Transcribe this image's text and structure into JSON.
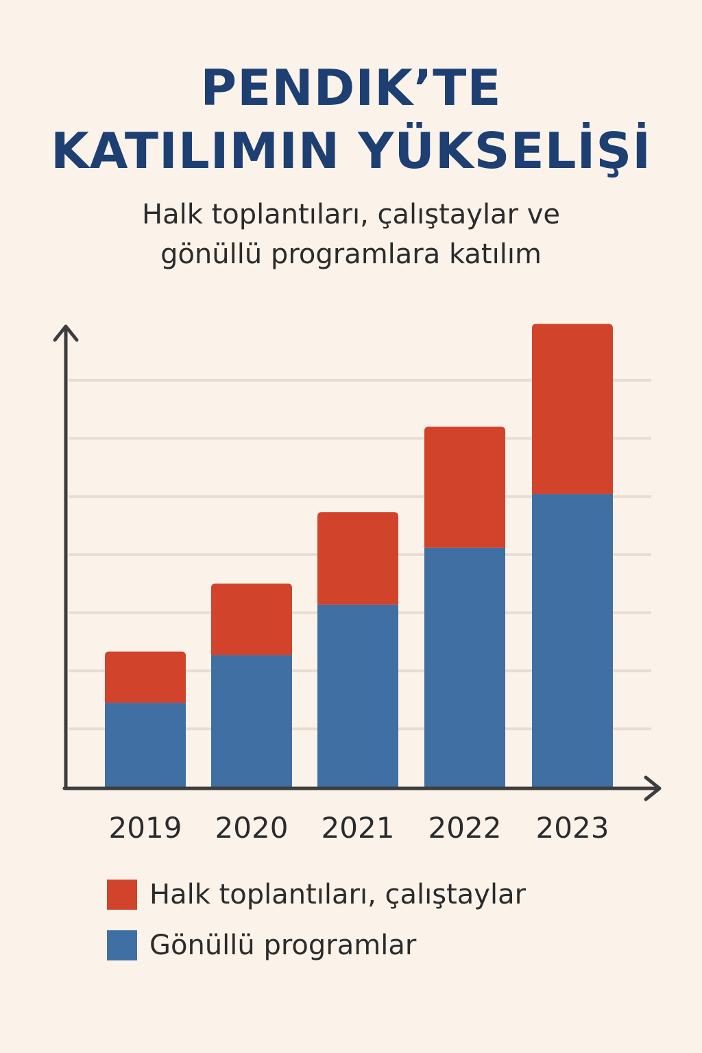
{
  "title_lines": [
    "PENDIK’TE",
    "KATILIMIN YÜKSELİŞİ"
  ],
  "subtitle_lines": [
    "Halk toplantıları, çalıştaylar ve",
    "gönüllü programlara katılım"
  ],
  "colors": {
    "background": "#fbf3ea",
    "title": "#1e3f72",
    "halk": "#d2432c",
    "gonullu": "#3f6fa3",
    "axis": "#3d3d3d",
    "grid": "#e8ddd2"
  },
  "chart_data": {
    "type": "bar",
    "stacked": true,
    "categories": [
      "2019",
      "2020",
      "2021",
      "2022",
      "2023"
    ],
    "series": [
      {
        "name": "Gönüllü programlar",
        "color": "#3f6fa3",
        "values": [
          14.5,
          22.7,
          31.4,
          41.2,
          50.4
        ]
      },
      {
        "name": "Halk toplantıları, çalıştaylar",
        "color": "#d2432c",
        "values": [
          8.8,
          12.3,
          15.9,
          20.8,
          29.3
        ]
      }
    ],
    "ylim": [
      0,
      80
    ],
    "grid": true,
    "legend_position": "bottom-left"
  },
  "legend": [
    {
      "label": "Halk toplantıları, çalıştaylar",
      "color": "#d2432c"
    },
    {
      "label": "Gönüllü programlar",
      "color": "#3f6fa3"
    }
  ]
}
